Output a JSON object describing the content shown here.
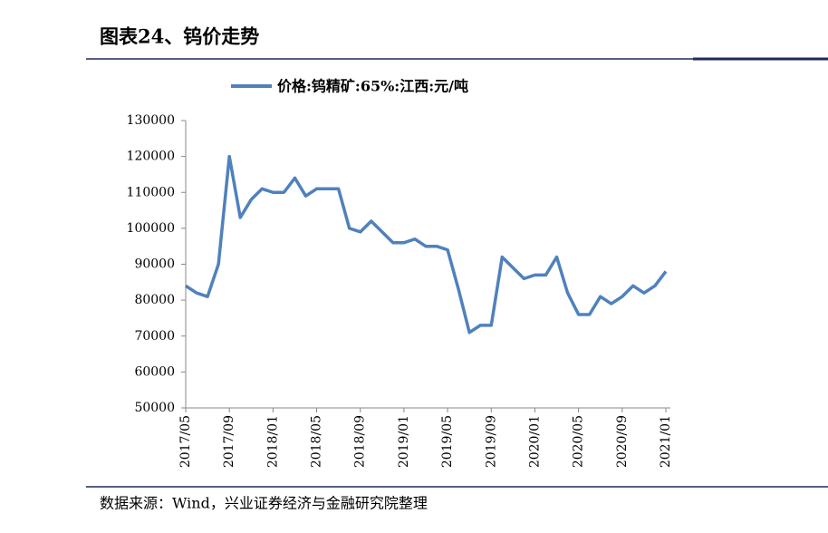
{
  "chart_data": {
    "type": "line",
    "title": "图表24、钨价走势",
    "source": "数据来源：Wind，兴业证券经济与金融研究院整理",
    "categories": [
      "2017/05",
      null,
      null,
      null,
      "2017/09",
      null,
      null,
      null,
      "2018/01",
      null,
      null,
      null,
      "2018/05",
      null,
      null,
      null,
      "2018/09",
      null,
      null,
      null,
      "2019/01",
      null,
      null,
      null,
      "2019/05",
      null,
      null,
      null,
      "2019/09",
      null,
      null,
      null,
      "2020/01",
      null,
      null,
      null,
      "2020/05",
      null,
      null,
      null,
      "2020/09",
      null,
      null,
      null,
      "2021/01"
    ],
    "series": [
      {
        "name": "价格:钨精矿:65%:江西:元/吨",
        "color": "#4f81bd",
        "values": [
          84000,
          82000,
          81000,
          90000,
          120000,
          103000,
          108000,
          111000,
          110000,
          110000,
          114000,
          109000,
          111000,
          111000,
          111000,
          100000,
          99000,
          102000,
          99000,
          96000,
          96000,
          97000,
          95000,
          95000,
          94000,
          83000,
          71000,
          73000,
          73000,
          92000,
          89000,
          86000,
          87000,
          87000,
          92000,
          82000,
          76000,
          76000,
          81000,
          79000,
          81000,
          84000,
          82000,
          84000,
          88000
        ]
      }
    ],
    "ylim": [
      50000,
      130000
    ],
    "yticks": [
      50000,
      60000,
      70000,
      80000,
      90000,
      100000,
      110000,
      120000,
      130000
    ]
  }
}
